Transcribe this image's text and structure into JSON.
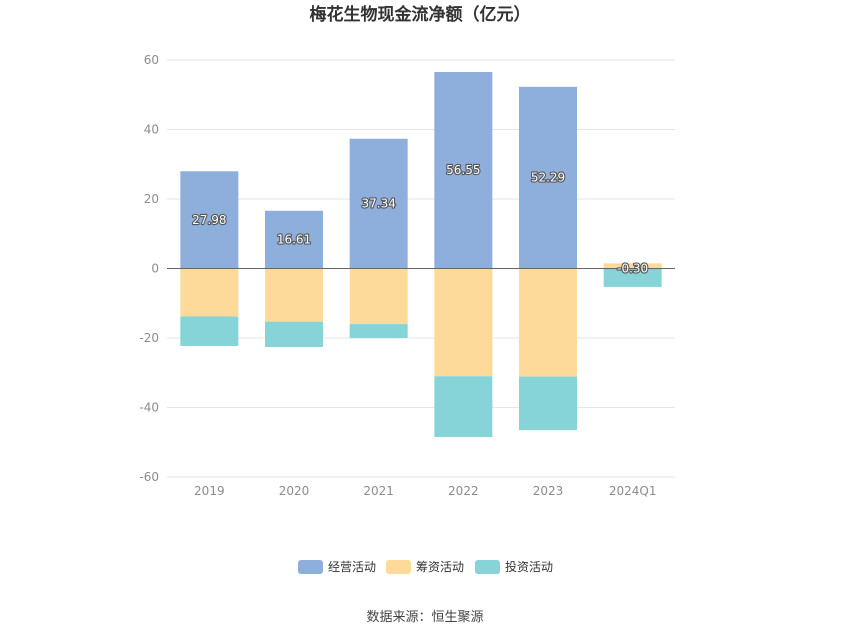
{
  "chart_data": {
    "type": "bar",
    "stacked": true,
    "title": "梅花生物现金流净额（亿元）",
    "categories": [
      "2019",
      "2020",
      "2021",
      "2022",
      "2023",
      "2024Q1"
    ],
    "series": [
      {
        "name": "经营活动",
        "color": "#8eaedc",
        "values": [
          27.98,
          16.61,
          37.34,
          56.55,
          52.29,
          -0.3
        ],
        "labels": [
          "27.98",
          "16.61",
          "37.34",
          "56.55",
          "52.29",
          "-0.30"
        ]
      },
      {
        "name": "筹资活动",
        "color": "#fdd99a",
        "values": [
          -13.8,
          -15.3,
          -16.0,
          -31.0,
          -31.1,
          1.5
        ]
      },
      {
        "name": "投资活动",
        "color": "#86d4d8",
        "values": [
          -8.5,
          -7.3,
          -4.0,
          -17.5,
          -15.4,
          -5.0
        ]
      }
    ],
    "ylim": [
      -60,
      60
    ],
    "yticks": [
      60,
      40,
      20,
      0,
      -20,
      -40,
      -60
    ],
    "grid": true,
    "legend": "bottom-center"
  },
  "source_text": "数据来源：恒生聚源"
}
